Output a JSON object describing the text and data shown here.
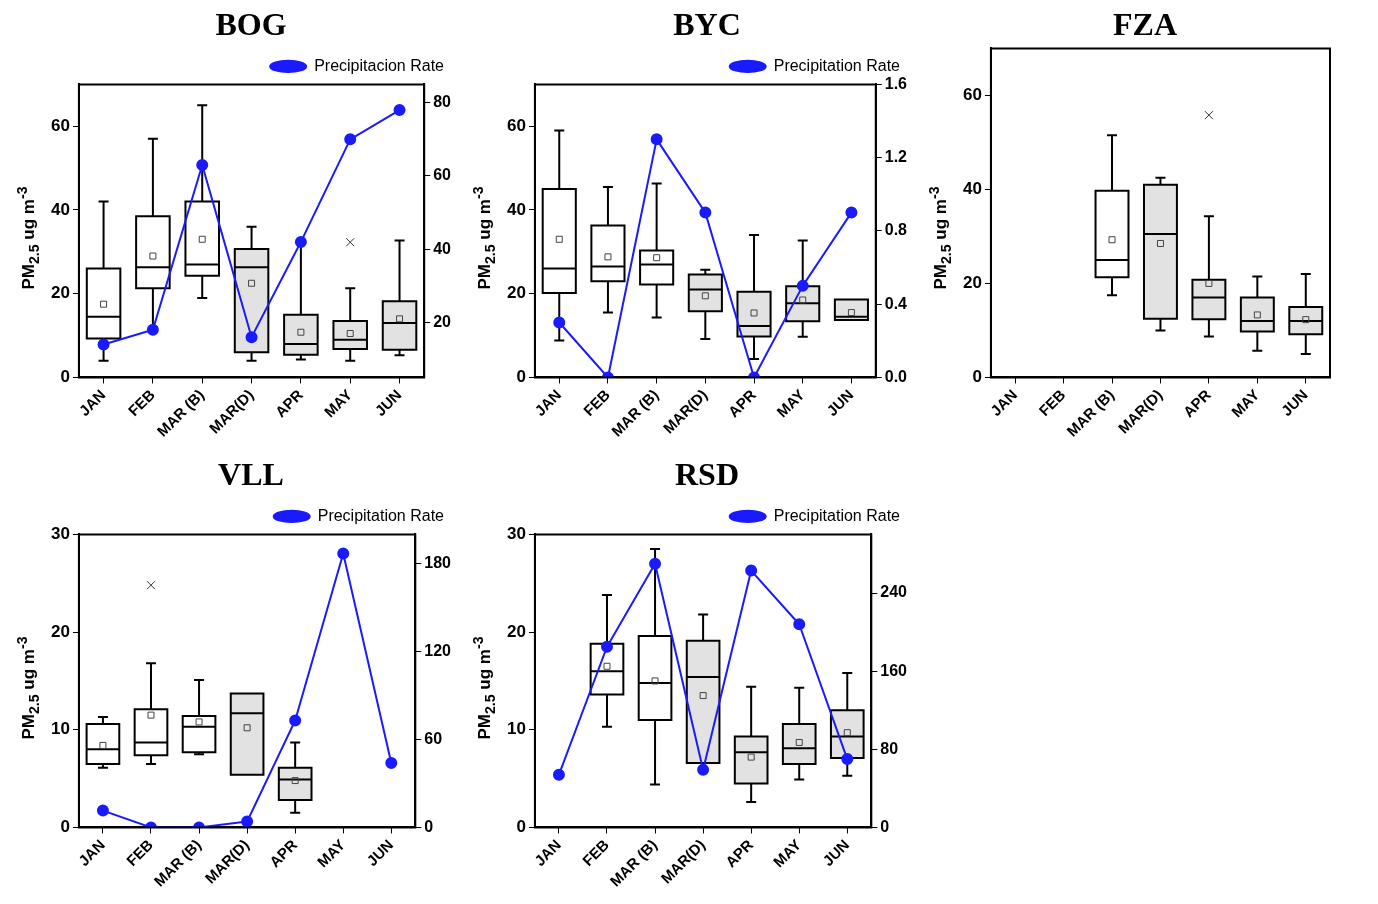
{
  "chart_data": [
    {
      "type": "box",
      "title": "BOG",
      "ylabel": "PM$_{2.5}$ ug m$^{-3}$",
      "categories": [
        "JAN",
        "FEB",
        "MAR (B)",
        "MAR(D)",
        "APR",
        "MAY",
        "JUN"
      ],
      "ylim": [
        0,
        70
      ],
      "yticks": [
        0,
        20,
        40,
        60
      ],
      "y2lim": [
        5,
        85
      ],
      "y2ticks": [
        20,
        40,
        60,
        80
      ],
      "legend": "top right",
      "marker": "circle",
      "grid": false,
      "colors": [
        "#ffffff",
        "#ffffff",
        "#ffffff",
        "#e2e2e2",
        "#e2e2e2",
        "#e2e2e2",
        "#e2e2e2"
      ],
      "boxes": [
        {
          "low": 4,
          "q1": 9.3,
          "median": 14.5,
          "q3": 26,
          "high": 42,
          "mean": 17.5
        },
        {
          "low": 12,
          "q1": 21.3,
          "median": 26.3,
          "q3": 38.5,
          "high": 57,
          "mean": 29
        },
        {
          "low": 19,
          "q1": 24.3,
          "median": 27,
          "q3": 42,
          "high": 65,
          "mean": 33
        },
        {
          "low": 4,
          "q1": 6,
          "median": 26.3,
          "q3": 30.7,
          "high": 36,
          "mean": 22.5
        },
        {
          "low": 4.3,
          "q1": 5.4,
          "median": 8,
          "q3": 15,
          "high": 32,
          "mean": 10.8
        },
        {
          "low": 4,
          "q1": 6.8,
          "median": 9,
          "q3": 13.5,
          "high": 21.3,
          "mean": 10.5,
          "outliers": [
            32.3
          ]
        },
        {
          "low": 5.3,
          "q1": 6.6,
          "median": 13,
          "q3": 18.2,
          "high": 32.7,
          "mean": 14
        }
      ],
      "series": [
        {
          "type": "line",
          "name": "Precipitacion Rate",
          "color": "#1a1aff",
          "axis": "y2",
          "values": [
            14,
            18,
            63,
            16,
            42,
            70,
            78
          ]
        }
      ]
    },
    {
      "type": "box",
      "title": "BYC",
      "ylabel": "PM$_{2.5}$ ug m$^{-3}$",
      "categories": [
        "JAN",
        "FEB",
        "MAR (B)",
        "MAR(D)",
        "APR",
        "MAY",
        "JUN"
      ],
      "ylim": [
        0,
        70
      ],
      "yticks": [
        0,
        20,
        40,
        60
      ],
      "y2lim": [
        0,
        1.6
      ],
      "y2ticks": [
        {
          "value": 0,
          "label": "0.0"
        },
        {
          "value": 0.4,
          "label": "0.4"
        },
        {
          "value": 0.8,
          "label": "0.8"
        },
        {
          "value": 1.2,
          "label": "1.2"
        },
        {
          "value": 1.6,
          "label": "1.6"
        }
      ],
      "legend": "top right",
      "marker": "circle",
      "grid": false,
      "colors": [
        "#ffffff",
        "#ffffff",
        "#ffffff",
        "#e2e2e2",
        "#e2e2e2",
        "#e2e2e2",
        "#e2e2e2"
      ],
      "boxes": [
        {
          "low": 8.8,
          "q1": 20.2,
          "median": 26,
          "q3": 45,
          "high": 59,
          "mean": 33
        },
        {
          "low": 15.5,
          "q1": 23,
          "median": 26.5,
          "q3": 36.3,
          "high": 45.5,
          "mean": 28.8
        },
        {
          "low": 14.3,
          "q1": 22.2,
          "median": 27,
          "q3": 30.3,
          "high": 46.3,
          "mean": 28.6
        },
        {
          "low": 9.2,
          "q1": 15.8,
          "median": 21,
          "q3": 24.6,
          "high": 25.7,
          "mean": 19.5
        },
        {
          "low": 4.4,
          "q1": 9.8,
          "median": 12.3,
          "q3": 20.5,
          "high": 34,
          "mean": 15.4
        },
        {
          "low": 9.7,
          "q1": 13.4,
          "median": 17.7,
          "q3": 21.8,
          "high": 32.7,
          "mean": 18.5
        },
        {
          "low": 13.7,
          "q1": 13.7,
          "median": 14.5,
          "q3": 18.6,
          "high": 18.6,
          "mean": 15.5
        }
      ],
      "series": [
        {
          "type": "line",
          "name": "Precipitation Rate",
          "color": "#1a1aff",
          "axis": "y2",
          "values": [
            0.3,
            0,
            1.3,
            0.9,
            0,
            0.5,
            0.9
          ]
        }
      ]
    },
    {
      "type": "box",
      "title": "FZA",
      "ylabel": "PM$_{2.5}$ ug m$^{-3}$",
      "categories": [
        "JAN",
        "FEB",
        "MAR (B)",
        "MAR(D)",
        "APR",
        "MAY",
        "JUN"
      ],
      "ylim": [
        0,
        70
      ],
      "yticks": [
        0,
        20,
        40,
        60
      ],
      "grid": false,
      "colors": [
        null,
        null,
        "#ffffff",
        "#e2e2e2",
        "#e2e2e2",
        "#e2e2e2",
        "#e2e2e2"
      ],
      "boxes": [
        null,
        null,
        {
          "low": 17.5,
          "q1": 21.3,
          "median": 25,
          "q3": 39.7,
          "high": 51.5,
          "mean": 29.3
        },
        {
          "low": 10,
          "q1": 12.5,
          "median": 30.5,
          "q3": 41,
          "high": 42.5,
          "mean": 28.5
        },
        {
          "low": 8.7,
          "q1": 12.4,
          "median": 17,
          "q3": 20.8,
          "high": 34.3,
          "mean": 20,
          "outliers": [
            55.8
          ]
        },
        {
          "low": 5.7,
          "q1": 9.8,
          "median": 12,
          "q3": 17,
          "high": 21.5,
          "mean": 13.3
        },
        {
          "low": 5,
          "q1": 9.2,
          "median": 12,
          "q3": 15,
          "high": 22,
          "mean": 12.3
        }
      ]
    },
    {
      "type": "box",
      "title": "VLL",
      "ylabel": "PM$_{2.5}$ ug m$^{-3}$",
      "categories": [
        "JAN",
        "FEB",
        "MAR (B)",
        "MAR(D)",
        "APR",
        "MAY",
        "JUN"
      ],
      "ylim": [
        0,
        30
      ],
      "yticks": [
        0,
        10,
        20,
        30
      ],
      "y2lim": [
        0,
        200
      ],
      "y2ticks": [
        0,
        60,
        120,
        180
      ],
      "legend": "top right",
      "marker": "circle",
      "grid": false,
      "colors": [
        "#ffffff",
        "#ffffff",
        "#ffffff",
        "#e2e2e2",
        "#e2e2e2",
        null,
        null
      ],
      "boxes": [
        {
          "low": 6.1,
          "q1": 6.5,
          "median": 8,
          "q3": 10.6,
          "high": 11.3,
          "mean": 8.4
        },
        {
          "low": 6.5,
          "q1": 7.4,
          "median": 8.7,
          "q3": 12.1,
          "high": 16.8,
          "mean": 11.5,
          "outliers": [
            24.8
          ]
        },
        {
          "low": 7.5,
          "q1": 7.7,
          "median": 10.3,
          "q3": 11.4,
          "high": 15.1,
          "mean": 10.8
        },
        {
          "low": 5.4,
          "q1": 5.4,
          "median": 11.7,
          "q3": 13.7,
          "high": 13.7,
          "mean": 10.2
        },
        {
          "low": 1.5,
          "q1": 2.8,
          "median": 4.9,
          "q3": 6.1,
          "high": 8.7,
          "mean": 4.8
        },
        null,
        null
      ],
      "series": [
        {
          "type": "line",
          "name": "Precipitation Rate",
          "color": "#1a1aff",
          "axis": "y2",
          "values": [
            11.5,
            0,
            0,
            4,
            73,
            187,
            44
          ]
        }
      ]
    },
    {
      "type": "box",
      "title": "RSD",
      "ylabel": "PM$_{2.5}$ ug m$^{-3}$",
      "categories": [
        "JAN",
        "FEB",
        "MAR (B)",
        "MAR(D)",
        "APR",
        "MAY",
        "JUN"
      ],
      "ylim": [
        0,
        30
      ],
      "yticks": [
        0,
        10,
        20,
        30
      ],
      "y2lim": [
        0,
        300
      ],
      "y2ticks": [
        0,
        80,
        160,
        240
      ],
      "legend": "top right",
      "marker": "circle",
      "grid": false,
      "colors": [
        null,
        "#ffffff",
        "#ffffff",
        "#e2e2e2",
        "#e2e2e2",
        "#e2e2e2",
        "#e2e2e2"
      ],
      "boxes": [
        null,
        {
          "low": 10.3,
          "q1": 13.6,
          "median": 16,
          "q3": 18.8,
          "high": 23.8,
          "mean": 16.5
        },
        {
          "low": 4.4,
          "q1": 11,
          "median": 14.8,
          "q3": 19.6,
          "high": 28.5,
          "mean": 15
        },
        {
          "low": 6.6,
          "q1": 6.6,
          "median": 15.4,
          "q3": 19.1,
          "high": 21.8,
          "mean": 13.5
        },
        {
          "low": 2.6,
          "q1": 4.5,
          "median": 7.7,
          "q3": 9.3,
          "high": 14.4,
          "mean": 7.2
        },
        {
          "low": 4.9,
          "q1": 6.5,
          "median": 8.1,
          "q3": 10.6,
          "high": 14.3,
          "mean": 8.7
        },
        {
          "low": 5.3,
          "q1": 7.1,
          "median": 9.3,
          "q3": 12,
          "high": 15.8,
          "mean": 9.7
        }
      ],
      "series": [
        {
          "type": "line",
          "name": "Precipitation Rate",
          "color": "#1a1aff",
          "axis": "y2",
          "values": [
            54,
            185,
            270,
            59,
            263,
            208,
            70
          ]
        }
      ]
    }
  ]
}
